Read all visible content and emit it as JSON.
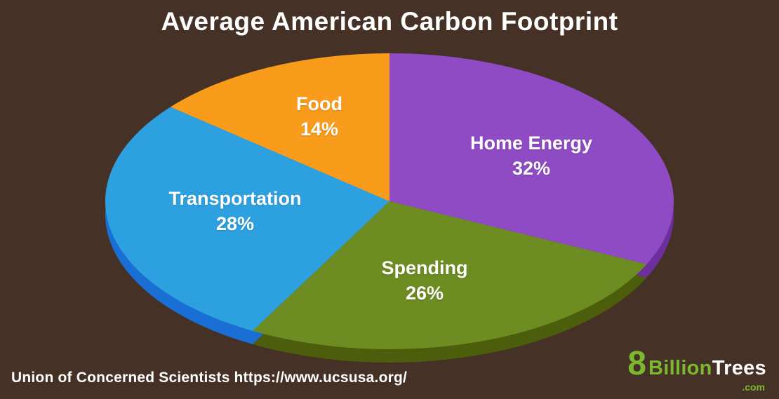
{
  "title": "Average American Carbon Footprint",
  "source": "Union of Concerned Scientists https://www.ucsusa.org/",
  "background": "#453125",
  "logo": {
    "eight": "8",
    "billion": "Billion",
    "trees": "Trees",
    "domain": ".com",
    "green": "#7cb82f",
    "white": "#ffffff"
  },
  "chart_data": {
    "type": "pie",
    "title": "Average American Carbon Footprint",
    "unit": "%",
    "order": "clockwise-from-top",
    "style": "3d-ellipse",
    "legend": "labels-on-slices",
    "slices": [
      {
        "id": "home-energy",
        "name": "Home Energy",
        "value": 32,
        "pct_text": "32%",
        "color": "#8e4bc4",
        "dark": "#6d2f9e"
      },
      {
        "id": "spending",
        "name": "Spending",
        "value": 26,
        "pct_text": "26%",
        "color": "#6d8c21",
        "dark": "#4c5e0b"
      },
      {
        "id": "transportation",
        "name": "Transportation",
        "value": 28,
        "pct_text": "28%",
        "color": "#2da0e0",
        "dark": "#1a6fd4"
      },
      {
        "id": "food",
        "name": "Food",
        "value": 14,
        "pct_text": "14%",
        "color": "#f99c1b",
        "dark": "#c47d12"
      }
    ]
  }
}
